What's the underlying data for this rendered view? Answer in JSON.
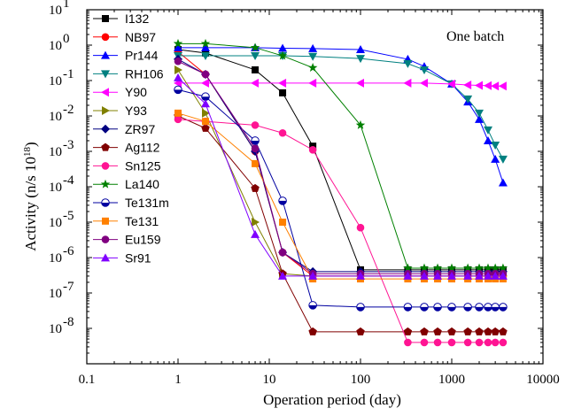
{
  "chart_data": {
    "type": "line",
    "annotation": "One batch",
    "xlabel": "Operation period (day)",
    "ylabel": "Activity (n/s 10",
    "ylabel_sup": "18",
    "ylabel_end": ")",
    "xscale": "log",
    "yscale": "log",
    "xlim": [
      0.1,
      10000
    ],
    "ylim": [
      1e-09,
      10
    ],
    "x_ticks": [
      {
        "v": 0.1,
        "label": "0.1"
      },
      {
        "v": 1,
        "label": "1"
      },
      {
        "v": 10,
        "label": "10"
      },
      {
        "v": 100,
        "label": "100"
      },
      {
        "v": 1000,
        "label": "1000"
      },
      {
        "v": 10000,
        "label": "10000"
      }
    ],
    "y_ticks": [
      {
        "v": 10,
        "label": "10",
        "exp": "1"
      },
      {
        "v": 1,
        "label": "10",
        "exp": "0"
      },
      {
        "v": 0.1,
        "label": "10",
        "exp": "-1"
      },
      {
        "v": 0.01,
        "label": "10",
        "exp": "-2"
      },
      {
        "v": 0.001,
        "label": "10",
        "exp": "-3"
      },
      {
        "v": 0.0001,
        "label": "10",
        "exp": "-4"
      },
      {
        "v": 1e-05,
        "label": "10",
        "exp": "-5"
      },
      {
        "v": 1e-06,
        "label": "10",
        "exp": "-6"
      },
      {
        "v": 1e-07,
        "label": "10",
        "exp": "-7"
      },
      {
        "v": 1e-08,
        "label": "10",
        "exp": "-8"
      }
    ],
    "legend_position": "upper-left",
    "series": [
      {
        "name": "I132",
        "color": "#000000",
        "marker": "square",
        "points": [
          [
            1,
            0.75
          ],
          [
            2,
            0.6
          ],
          [
            7,
            0.2
          ],
          [
            14,
            0.045
          ],
          [
            30,
            0.0014
          ],
          [
            100,
            4.5e-07
          ],
          [
            330,
            4.5e-07
          ],
          [
            500,
            4.5e-07
          ],
          [
            700,
            4.5e-07
          ],
          [
            1000,
            4.5e-07
          ],
          [
            1500,
            4.5e-07
          ],
          [
            2000,
            4.5e-07
          ],
          [
            2500,
            4.5e-07
          ],
          [
            3000,
            4.5e-07
          ],
          [
            3650,
            4.5e-07
          ]
        ]
      },
      {
        "name": "NB97",
        "color": "#ff0000",
        "marker": "circle",
        "points": [
          [
            1,
            0.65
          ],
          [
            2,
            0.15
          ],
          [
            7,
            0.001
          ],
          [
            14,
            1.4e-06
          ],
          [
            30,
            3e-07
          ],
          [
            100,
            3e-07
          ],
          [
            330,
            3e-07
          ],
          [
            500,
            3e-07
          ],
          [
            700,
            3e-07
          ],
          [
            1000,
            3e-07
          ],
          [
            1500,
            3e-07
          ],
          [
            2000,
            3e-07
          ],
          [
            2500,
            3e-07
          ],
          [
            3000,
            3e-07
          ],
          [
            3650,
            3e-07
          ]
        ]
      },
      {
        "name": "Pr144",
        "color": "#0000ff",
        "marker": "triangle-up",
        "points": [
          [
            1,
            0.85
          ],
          [
            2,
            0.85
          ],
          [
            7,
            0.85
          ],
          [
            14,
            0.82
          ],
          [
            30,
            0.8
          ],
          [
            100,
            0.75
          ],
          [
            330,
            0.4
          ],
          [
            500,
            0.25
          ],
          [
            1000,
            0.08
          ],
          [
            1500,
            0.025
          ],
          [
            2000,
            0.008
          ],
          [
            2500,
            0.002
          ],
          [
            3000,
            0.0006
          ],
          [
            3650,
            0.00013
          ]
        ]
      },
      {
        "name": "RH106",
        "color": "#008080",
        "marker": "triangle-down",
        "points": [
          [
            1,
            0.5
          ],
          [
            2,
            0.5
          ],
          [
            7,
            0.5
          ],
          [
            14,
            0.5
          ],
          [
            30,
            0.48
          ],
          [
            100,
            0.42
          ],
          [
            330,
            0.3
          ],
          [
            500,
            0.2
          ],
          [
            1000,
            0.08
          ],
          [
            1500,
            0.03
          ],
          [
            2000,
            0.012
          ],
          [
            2500,
            0.004
          ],
          [
            3000,
            0.0015
          ],
          [
            3650,
            0.0006
          ]
        ]
      },
      {
        "name": "Y90",
        "color": "#ff00ff",
        "marker": "triangle-left",
        "points": [
          [
            1,
            0.085
          ],
          [
            2,
            0.085
          ],
          [
            7,
            0.085
          ],
          [
            14,
            0.085
          ],
          [
            30,
            0.085
          ],
          [
            100,
            0.085
          ],
          [
            330,
            0.085
          ],
          [
            500,
            0.085
          ],
          [
            1000,
            0.08
          ],
          [
            1500,
            0.075
          ],
          [
            2000,
            0.073
          ],
          [
            2500,
            0.072
          ],
          [
            3000,
            0.07
          ],
          [
            3650,
            0.07
          ]
        ]
      },
      {
        "name": "Y93",
        "color": "#808000",
        "marker": "triangle-right",
        "points": [
          [
            1,
            0.2
          ],
          [
            2,
            0.012
          ],
          [
            7,
            1e-05
          ],
          [
            14,
            3.5e-07
          ],
          [
            30,
            3e-07
          ],
          [
            100,
            3e-07
          ],
          [
            330,
            3e-07
          ],
          [
            500,
            3e-07
          ],
          [
            700,
            3e-07
          ],
          [
            1000,
            3e-07
          ],
          [
            1500,
            3e-07
          ],
          [
            2000,
            3e-07
          ],
          [
            2500,
            3e-07
          ],
          [
            3000,
            3e-07
          ],
          [
            3650,
            3e-07
          ]
        ]
      },
      {
        "name": "ZR97",
        "color": "#000080",
        "marker": "diamond",
        "points": [
          [
            1,
            0.4
          ],
          [
            2,
            0.15
          ],
          [
            7,
            0.001
          ],
          [
            14,
            1.4e-06
          ],
          [
            30,
            4e-07
          ],
          [
            100,
            4e-07
          ],
          [
            330,
            4e-07
          ],
          [
            500,
            4e-07
          ],
          [
            700,
            4e-07
          ],
          [
            1000,
            4e-07
          ],
          [
            1500,
            4e-07
          ],
          [
            2000,
            4e-07
          ],
          [
            2500,
            4e-07
          ],
          [
            3000,
            4e-07
          ],
          [
            3650,
            4e-07
          ]
        ]
      },
      {
        "name": "Ag112",
        "color": "#800000",
        "marker": "pentagon",
        "points": [
          [
            1,
            0.01
          ],
          [
            2,
            0.0045
          ],
          [
            7,
            9e-05
          ],
          [
            14,
            3.5e-07
          ],
          [
            30,
            8e-09
          ],
          [
            100,
            8e-09
          ],
          [
            330,
            8e-09
          ],
          [
            500,
            8e-09
          ],
          [
            700,
            8e-09
          ],
          [
            1000,
            8e-09
          ],
          [
            1500,
            8e-09
          ],
          [
            2000,
            8e-09
          ],
          [
            2500,
            8e-09
          ],
          [
            3000,
            8e-09
          ],
          [
            3650,
            8e-09
          ]
        ]
      },
      {
        "name": "Sn125",
        "color": "#ff1493",
        "marker": "circle",
        "points": [
          [
            1,
            0.008
          ],
          [
            2,
            0.007
          ],
          [
            7,
            0.0055
          ],
          [
            14,
            0.0033
          ],
          [
            30,
            0.0011
          ],
          [
            100,
            7e-06
          ],
          [
            330,
            4e-09
          ],
          [
            500,
            4e-09
          ],
          [
            700,
            4e-09
          ],
          [
            1000,
            4e-09
          ],
          [
            1500,
            4e-09
          ],
          [
            2000,
            4e-09
          ],
          [
            2500,
            4e-09
          ],
          [
            3000,
            4e-09
          ],
          [
            3650,
            4e-09
          ]
        ]
      },
      {
        "name": "La140",
        "color": "#008000",
        "marker": "star",
        "points": [
          [
            1,
            1.1
          ],
          [
            2,
            1.1
          ],
          [
            7,
            0.85
          ],
          [
            14,
            0.5
          ],
          [
            30,
            0.23
          ],
          [
            100,
            0.0055
          ],
          [
            330,
            5e-07
          ],
          [
            500,
            5e-07
          ],
          [
            700,
            5e-07
          ],
          [
            1000,
            5e-07
          ],
          [
            1500,
            5e-07
          ],
          [
            2000,
            5e-07
          ],
          [
            2500,
            5e-07
          ],
          [
            3000,
            5e-07
          ],
          [
            3650,
            5e-07
          ]
        ]
      },
      {
        "name": "Te131m",
        "color": "#0000a0",
        "marker": "half-circle",
        "points": [
          [
            1,
            0.055
          ],
          [
            2,
            0.035
          ],
          [
            7,
            0.002
          ],
          [
            14,
            4e-05
          ],
          [
            30,
            4.5e-08
          ],
          [
            100,
            4e-08
          ],
          [
            330,
            4e-08
          ],
          [
            500,
            4e-08
          ],
          [
            700,
            4e-08
          ],
          [
            1000,
            4e-08
          ],
          [
            1500,
            4e-08
          ],
          [
            2000,
            4e-08
          ],
          [
            2500,
            4e-08
          ],
          [
            3000,
            4e-08
          ],
          [
            3650,
            4e-08
          ]
        ]
      },
      {
        "name": "Te131",
        "color": "#ff8000",
        "marker": "square",
        "points": [
          [
            1,
            0.012
          ],
          [
            2,
            0.007
          ],
          [
            7,
            0.00045
          ],
          [
            14,
            1e-05
          ],
          [
            30,
            2.5e-07
          ],
          [
            100,
            2.5e-07
          ],
          [
            330,
            2.5e-07
          ],
          [
            500,
            2.5e-07
          ],
          [
            700,
            2.5e-07
          ],
          [
            1000,
            2.5e-07
          ],
          [
            1500,
            2.5e-07
          ],
          [
            2000,
            2.5e-07
          ],
          [
            2500,
            2.5e-07
          ],
          [
            3000,
            2.5e-07
          ],
          [
            3650,
            2.5e-07
          ]
        ]
      },
      {
        "name": "Eu159",
        "color": "#800080",
        "marker": "circle",
        "points": [
          [
            1,
            0.35
          ],
          [
            2,
            0.15
          ],
          [
            7,
            0.0012
          ],
          [
            14,
            1.4e-06
          ],
          [
            30,
            3.5e-07
          ],
          [
            100,
            3.5e-07
          ],
          [
            330,
            3.5e-07
          ],
          [
            500,
            3.5e-07
          ],
          [
            700,
            3.5e-07
          ],
          [
            1000,
            3.5e-07
          ],
          [
            1500,
            3.5e-07
          ],
          [
            2000,
            3.5e-07
          ],
          [
            2500,
            3.5e-07
          ],
          [
            3000,
            3.5e-07
          ],
          [
            3650,
            3.5e-07
          ]
        ]
      },
      {
        "name": "Sr91",
        "color": "#8000ff",
        "marker": "triangle-up",
        "points": [
          [
            1,
            0.12
          ],
          [
            2,
            0.022
          ],
          [
            7,
            4.5e-06
          ],
          [
            14,
            3e-07
          ],
          [
            30,
            3e-07
          ],
          [
            100,
            3e-07
          ],
          [
            330,
            3e-07
          ],
          [
            500,
            3e-07
          ],
          [
            700,
            3e-07
          ],
          [
            1000,
            3e-07
          ],
          [
            1500,
            3e-07
          ],
          [
            2000,
            3e-07
          ],
          [
            2500,
            3e-07
          ],
          [
            3000,
            3e-07
          ],
          [
            3650,
            3e-07
          ]
        ]
      }
    ]
  }
}
